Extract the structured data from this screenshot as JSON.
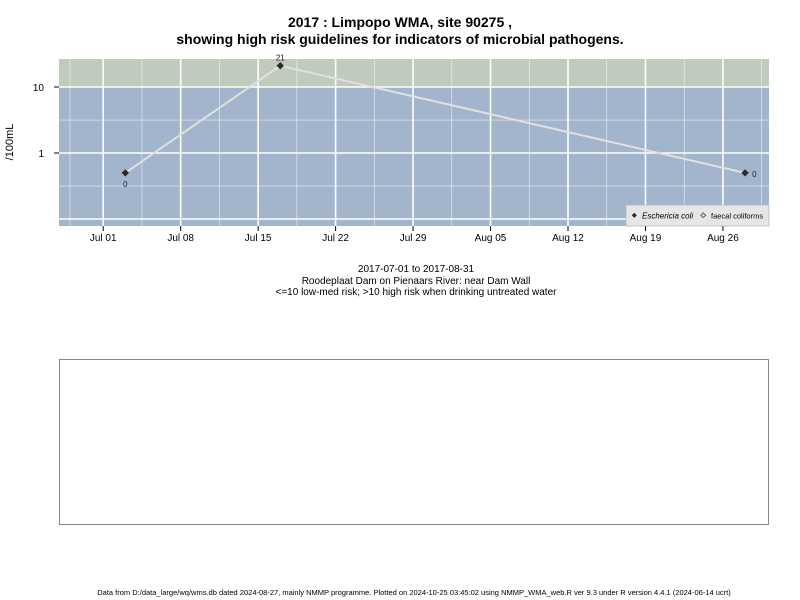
{
  "title_line1": "2017 : Limpopo WMA, site 90275 ,",
  "title_line2": "showing high risk guidelines for indicators of microbial pathogens.",
  "subtitle_date_range": "2017-07-01 to 2017-08-31",
  "subtitle_site": "Roodeplaat Dam on Pienaars River: near Dam Wall",
  "subtitle_risk": "<=10 low-med risk; >10 high risk when drinking untreated water",
  "footer": "Data from D:/data_large/wq/wms.db dated 2024-08-27, mainly NMMP programme. Plotted on 2024-10-25 03:45:02 using NMMP_WMA_web.R ver 9.3 under R version 4.4.1 (2024-06-14 ucrt)",
  "colors": {
    "low_risk_band": "#a3b4cd",
    "high_risk_band": "#c1cbbd",
    "grid": "#ffffff",
    "series_line": "#e0e0e0",
    "points": "#2a2a2a"
  },
  "chart_data": {
    "type": "line",
    "ylabel": "/100mL",
    "y_scale": "log",
    "y_ticks": [
      1,
      10
    ],
    "y_tick_labels": [
      "1",
      "10"
    ],
    "x_tick_labels": [
      "Jul 01",
      "Jul 08",
      "Jul 15",
      "Jul 22",
      "Jul 29",
      "Aug 05",
      "Aug 12",
      "Aug 19",
      "Aug 26"
    ],
    "x_ticks": [
      "2017-07-01",
      "2017-07-08",
      "2017-07-15",
      "2017-07-22",
      "2017-07-29",
      "2017-08-05",
      "2017-08-12",
      "2017-08-19",
      "2017-08-26"
    ],
    "threshold": 10,
    "series": [
      {
        "name": "Eschericia coli",
        "x": [
          "2017-07-03",
          "2017-07-17",
          "2017-08-28"
        ],
        "y": [
          0.5,
          21,
          0.5
        ],
        "point_labels": [
          "0",
          "21",
          "0"
        ]
      }
    ],
    "legend": {
      "position": "bottom-right",
      "entries": [
        "Eschericia coli",
        "faecal coliforms"
      ]
    }
  }
}
